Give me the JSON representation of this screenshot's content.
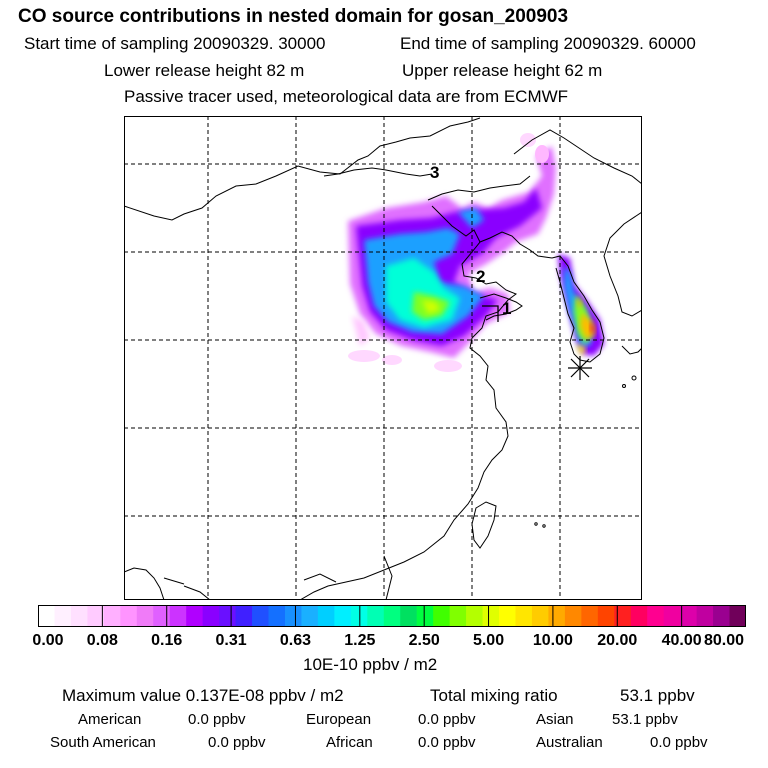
{
  "header": {
    "title": "CO  source contributions in nested domain for gosan_200903",
    "start_time": "Start time of sampling 20090329. 30000",
    "end_time": "End time of sampling 20090329. 60000",
    "lower_height": "Lower release height   82 m",
    "upper_height": "Upper release height   62 m",
    "note": "Passive tracer used, meteorological data are from ECMWF"
  },
  "map": {
    "labels": [
      "1",
      "2",
      "3"
    ],
    "receptor_marker": "asterisk"
  },
  "colorbar": {
    "colors": [
      "#ffffff",
      "#fff0ff",
      "#ffe0ff",
      "#ffcbff",
      "#ffb0ff",
      "#ff94ff",
      "#f07bf8",
      "#e060ff",
      "#cc33ff",
      "#b000ff",
      "#8a00ff",
      "#6a10ff",
      "#4020ff",
      "#2050ff",
      "#1470ff",
      "#1890ff",
      "#1ab0ff",
      "#00cfff",
      "#00efff",
      "#00ffe6",
      "#00ffb4",
      "#00ff80",
      "#00e060",
      "#00ff40",
      "#40ff00",
      "#80ff00",
      "#b4ff00",
      "#e0ff00",
      "#ffff00",
      "#ffe600",
      "#ffcc00",
      "#ffaa00",
      "#ff8800",
      "#ff6600",
      "#ff4400",
      "#ff2020",
      "#ff0060",
      "#ff0090",
      "#f000a0",
      "#dd00aa",
      "#c000a0",
      "#9a0090",
      "#70005a"
    ],
    "tick_labels": [
      "0.00",
      "0.08",
      "0.16",
      "0.31",
      "0.63",
      "1.25",
      "2.50",
      "5.00",
      "10.00",
      "20.00",
      "40.00",
      "80.00"
    ],
    "units": "10E-10 ppbv / m2"
  },
  "summary": {
    "max_label": "Maximum value  0.137E-08 ppbv / m2",
    "total_label": "Total mixing ratio",
    "total_value": "53.1 ppbv",
    "sources": [
      {
        "name": "American",
        "value": "0.0 ppbv"
      },
      {
        "name": "European",
        "value": "0.0 ppbv"
      },
      {
        "name": "Asian",
        "value": "53.1 ppbv"
      },
      {
        "name": "South American",
        "value": "0.0 ppbv"
      },
      {
        "name": "African",
        "value": "0.0 ppbv"
      },
      {
        "name": "Australian",
        "value": "0.0 ppbv"
      }
    ]
  }
}
